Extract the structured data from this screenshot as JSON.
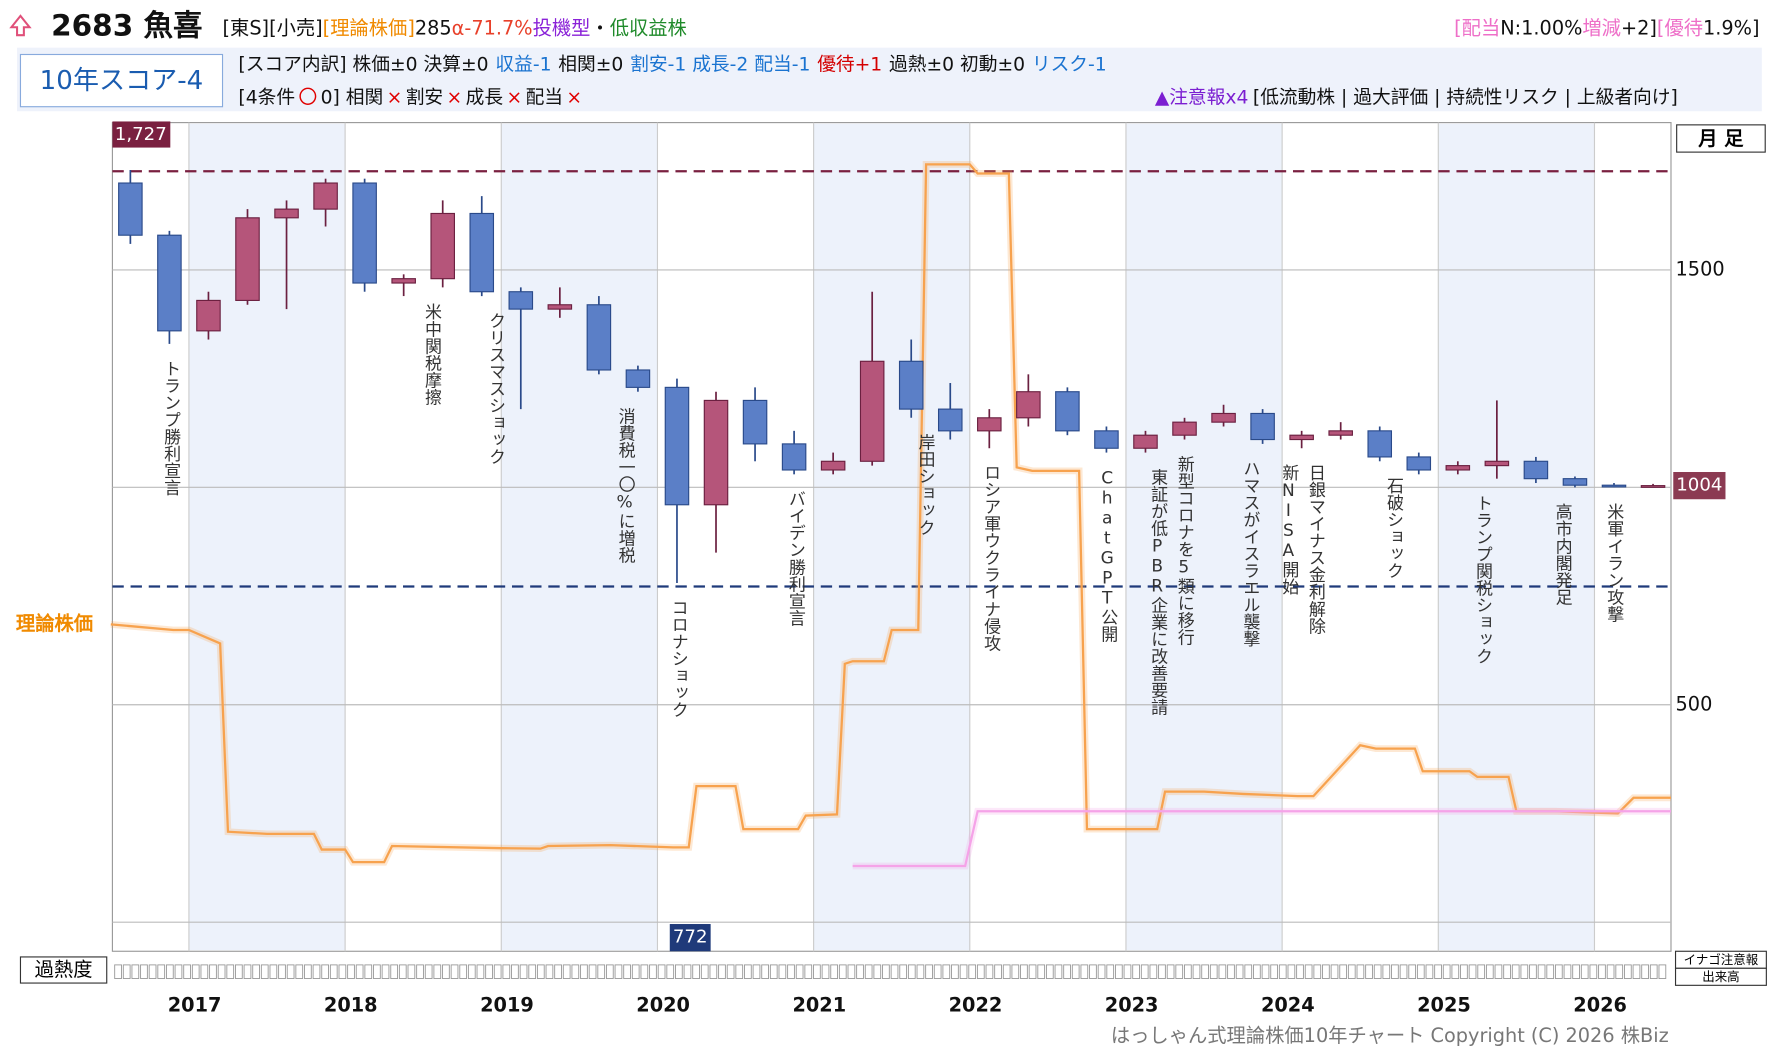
{
  "header": {
    "code_name": "2683 魚喜",
    "title_segments": [
      {
        "text": "[東S][小売]",
        "color": "#111"
      },
      {
        "text": "[理論株価]",
        "color": "#f08a00"
      },
      {
        "text": "285",
        "color": "#111"
      },
      {
        "text": "α-71.7%",
        "color": "#e8402a"
      },
      {
        "text": "投機型",
        "color": "#8a22d8"
      },
      {
        "text": "・",
        "color": "#111"
      },
      {
        "text": "低収益株",
        "color": "#1f8a2a"
      }
    ],
    "right_segments": [
      {
        "text": "[配当",
        "color": "#ee6fc8"
      },
      {
        "text": "N:1.00%",
        "color": "#111"
      },
      {
        "text": "増減",
        "color": "#ee6fc8"
      },
      {
        "text": "+2]",
        "color": "#111"
      },
      {
        "text": "[優待",
        "color": "#ee6fc8"
      },
      {
        "text": "1.9%]",
        "color": "#111"
      }
    ],
    "score": "10年スコア-4",
    "score_row": [
      {
        "text": "[スコア内訳] 株価±0 決算±0",
        "color": "#111"
      },
      {
        "text": "収益-1",
        "color": "#1a73d0"
      },
      {
        "text": "相関±0",
        "color": "#111"
      },
      {
        "text": "割安-1 成長-2 配当-1",
        "color": "#1a73d0"
      },
      {
        "text": "優待+1",
        "color": "#d40000"
      },
      {
        "text": "過熱±0 初動±0",
        "color": "#111"
      },
      {
        "text": "リスク-1",
        "color": "#1a73d0"
      }
    ],
    "condition_row": [
      {
        "text": "[4条件",
        "color": "#111"
      },
      {
        "text": "〇",
        "color": "#e00000"
      },
      {
        "text": "0] 相関",
        "color": "#111"
      },
      {
        "text": "×",
        "color": "#e00000"
      },
      {
        "text": "割安",
        "color": "#111"
      },
      {
        "text": "×",
        "color": "#e00000"
      },
      {
        "text": "成長",
        "color": "#111"
      },
      {
        "text": "×",
        "color": "#e00000"
      },
      {
        "text": "配当",
        "color": "#111"
      },
      {
        "text": "×",
        "color": "#e00000"
      }
    ],
    "warning_row": [
      {
        "text": "▲注意報x4",
        "color": "#7b1fd1"
      },
      {
        "text": "[低流動株 | 過大評価 | 持続性リスク | 上級者向け]",
        "color": "#111"
      }
    ]
  },
  "chart_data": {
    "type": "candlestick",
    "period": "月 足",
    "x": [
      2016.625,
      2016.875,
      2017.125,
      2017.375,
      2017.625,
      2017.875,
      2018.125,
      2018.375,
      2018.625,
      2018.875,
      2019.125,
      2019.375,
      2019.625,
      2019.875,
      2020.125,
      2020.375,
      2020.625,
      2020.875,
      2021.125,
      2021.375,
      2021.625,
      2021.875,
      2022.125,
      2022.375,
      2022.625,
      2022.875,
      2023.125,
      2023.375,
      2023.625,
      2023.875,
      2024.125,
      2024.375,
      2024.625,
      2024.875,
      2025.125,
      2025.375,
      2025.625,
      2025.875,
      2026.125,
      2026.375
    ],
    "open": [
      1700,
      1580,
      1360,
      1430,
      1620,
      1640,
      1700,
      1470,
      1480,
      1630,
      1450,
      1410,
      1420,
      1270,
      1230,
      960,
      1200,
      1100,
      1040,
      1060,
      1290,
      1180,
      1130,
      1160,
      1220,
      1130,
      1090,
      1120,
      1150,
      1170,
      1110,
      1120,
      1130,
      1070,
      1040,
      1050,
      1060,
      1020,
      1005,
      1004
    ],
    "high": [
      1730,
      1590,
      1450,
      1640,
      1660,
      1710,
      1710,
      1490,
      1660,
      1670,
      1460,
      1460,
      1440,
      1280,
      1250,
      1220,
      1230,
      1130,
      1080,
      1450,
      1340,
      1240,
      1180,
      1260,
      1230,
      1140,
      1130,
      1160,
      1190,
      1180,
      1130,
      1150,
      1140,
      1080,
      1060,
      1200,
      1070,
      1025,
      1010,
      1008
    ],
    "low": [
      1560,
      1330,
      1340,
      1420,
      1410,
      1600,
      1450,
      1440,
      1460,
      1440,
      1180,
      1390,
      1260,
      1220,
      780,
      850,
      1060,
      1030,
      1030,
      1050,
      1160,
      1110,
      1090,
      1140,
      1120,
      1080,
      1080,
      1110,
      1140,
      1100,
      1090,
      1110,
      1060,
      1030,
      1030,
      1020,
      1010,
      1000,
      1000,
      1000
    ],
    "close": [
      1580,
      1360,
      1430,
      1620,
      1640,
      1700,
      1470,
      1480,
      1630,
      1450,
      1410,
      1420,
      1270,
      1230,
      960,
      1200,
      1100,
      1040,
      1060,
      1290,
      1180,
      1130,
      1160,
      1220,
      1130,
      1090,
      1120,
      1150,
      1170,
      1110,
      1120,
      1130,
      1070,
      1040,
      1050,
      1060,
      1020,
      1005,
      1004,
      1004
    ],
    "up_color": "#b5557a",
    "down_color": "#5b7fc7",
    "series": [
      {
        "name": "理論株価",
        "color": "#f7a24e",
        "x": [
          2016.5,
          2016.9,
          2017.0,
          2017.2,
          2017.25,
          2017.5,
          2017.8,
          2017.85,
          2018.0,
          2018.05,
          2018.25,
          2018.3,
          2019.0,
          2019.25,
          2019.3,
          2019.7,
          2020.1,
          2020.2,
          2020.25,
          2020.5,
          2020.55,
          2020.9,
          2020.95,
          2021.15,
          2021.2,
          2021.25,
          2021.45,
          2021.5,
          2021.67,
          2021.72,
          2022.0,
          2022.05,
          2022.25,
          2022.3,
          2022.4,
          2022.7,
          2022.75,
          2023.2,
          2023.25,
          2023.5,
          2023.75,
          2024.1,
          2024.2,
          2024.5,
          2024.6,
          2024.85,
          2024.9,
          2025.2,
          2025.25,
          2025.45,
          2025.5,
          2025.75,
          2026.15,
          2026.25,
          2026.49
        ],
        "values": [
          685,
          672,
          672,
          641,
          208,
          203,
          203,
          167,
          167,
          138,
          138,
          175,
          170,
          169,
          175,
          177,
          172,
          172,
          313,
          313,
          214,
          214,
          245,
          248,
          594,
          600,
          600,
          672,
          672,
          1743,
          1743,
          1722,
          1722,
          1046,
          1038,
          1038,
          214,
          214,
          300,
          300,
          295,
          290,
          290,
          407,
          399,
          399,
          347,
          347,
          334,
          334,
          255,
          255,
          250,
          286,
          286
        ]
      },
      {
        "color": "#f5a3e8",
        "x": [
          2021.25,
          2021.97,
          2022.05,
          2026.49
        ],
        "values": [
          129,
          129,
          255,
          255
        ]
      }
    ],
    "max": {
      "value": 1727,
      "label": "1,727"
    },
    "max_color": "#7a2040",
    "min": 772,
    "min_color": "#1f3a7a",
    "current": 1004,
    "current_color": "#8b3a52",
    "xlim": [
      2016.51,
      2026.49
    ],
    "xticks": [
      2017,
      2018,
      2019,
      2020,
      2021,
      2022,
      2023,
      2024,
      2025,
      2026
    ],
    "ylim": [
      -67,
      1839
    ],
    "yticks": [
      500,
      1500
    ],
    "ygrid": [
      0,
      500,
      1000,
      1500
    ],
    "events": [
      {
        "x": 2016.88,
        "label": "トランプ勝利宣言"
      },
      {
        "x": 2018.55,
        "label": "米中関税摩擦"
      },
      {
        "x": 2018.96,
        "label": "クリスマスショック"
      },
      {
        "x": 2019.79,
        "label": "消費税一〇%に増税"
      },
      {
        "x": 2020.13,
        "label": "コロナショック"
      },
      {
        "x": 2020.88,
        "label": "バイデン勝利宣言"
      },
      {
        "x": 2021.71,
        "label": "岸田ショック"
      },
      {
        "x": 2022.13,
        "label": "ロシア軍ウクライナ侵攻"
      },
      {
        "x": 2022.88,
        "label": "ChatGPT公開"
      },
      {
        "x": 2023.2,
        "label": "東証が低PBR企業に改善要請"
      },
      {
        "x": 2023.37,
        "label": "新型コロナを5類に移行"
      },
      {
        "x": 2023.79,
        "label": "ハマスがイスラエル襲撃"
      },
      {
        "x": 2024.04,
        "label": "新NISA開始"
      },
      {
        "x": 2024.21,
        "label": "日銀マイナス金利解除"
      },
      {
        "x": 2024.71,
        "label": "石破ショック"
      },
      {
        "x": 2025.28,
        "label": "トランプ関税ショック"
      },
      {
        "x": 2025.79,
        "label": "高市内閣発足"
      },
      {
        "x": 2026.12,
        "label": "米軍イラン攻撃"
      }
    ]
  },
  "footer": {
    "overheat": "過熱度",
    "inago": "イナゴ注意報",
    "volume": "出来高",
    "copyright": "はっしゃん式理論株価10年チャート Copyright (C) 2026 株Biz"
  }
}
